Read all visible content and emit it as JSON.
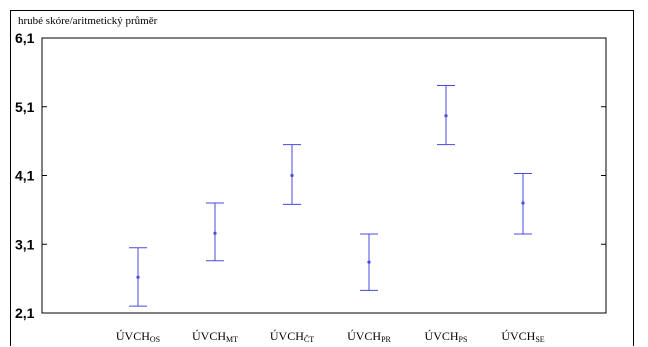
{
  "chart_data": {
    "type": "errorbar",
    "ylabel": "hrubé skóre/aritmetický průměr",
    "ylim": [
      2.1,
      6.1
    ],
    "yticks": [
      "6,1",
      "5,1",
      "4,1",
      "3,1",
      "2,1"
    ],
    "ytick_values": [
      6.1,
      5.1,
      4.1,
      3.1,
      2.1
    ],
    "categories": [
      {
        "base": "ÚVCH",
        "sub": "OS"
      },
      {
        "base": "ÚVCH",
        "sub": "MT"
      },
      {
        "base": "ÚVCH",
        "sub": "ČT"
      },
      {
        "base": "ÚVCH",
        "sub": "PR"
      },
      {
        "base": "ÚVCH",
        "sub": "PS"
      },
      {
        "base": "ÚVCH",
        "sub": "SE"
      }
    ],
    "means": [
      2.62,
      3.26,
      4.1,
      2.84,
      4.97,
      3.7
    ],
    "lower": [
      2.2,
      2.86,
      3.68,
      2.43,
      4.55,
      3.25
    ],
    "upper": [
      3.05,
      3.7,
      4.55,
      3.25,
      5.41,
      4.13
    ],
    "grid": false,
    "legend": false,
    "colors": {
      "series": "#4a4ae0",
      "axis": "#000000"
    }
  }
}
